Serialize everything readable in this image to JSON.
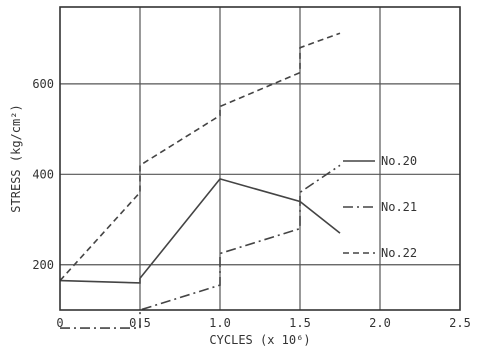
{
  "chart_data": {
    "type": "line",
    "title": "",
    "xlabel": "CYCLES (x 10⁶)",
    "ylabel": "STRESS (kg/cm²)",
    "xlim": [
      0,
      2.5
    ],
    "ylim": [
      100,
      770
    ],
    "grid": true,
    "legend_position": "right",
    "x_ticks": [
      "0",
      "0.5",
      "1.0",
      "1.5",
      "2.0",
      "2.5"
    ],
    "y_ticks": [
      "200",
      "400",
      "600"
    ],
    "series": [
      {
        "name": "No.20",
        "style": "solid",
        "points": [
          [
            0,
            165
          ],
          [
            0.5,
            160
          ],
          [
            0.5,
            170
          ],
          [
            1.0,
            390
          ],
          [
            1.5,
            340
          ],
          [
            1.75,
            270
          ]
        ]
      },
      {
        "name": "No.21",
        "style": "dashdot",
        "points": [
          [
            0,
            60
          ],
          [
            0.5,
            60
          ],
          [
            0.5,
            100
          ],
          [
            1.0,
            155
          ],
          [
            1.0,
            225
          ],
          [
            1.5,
            280
          ],
          [
            1.5,
            360
          ],
          [
            1.75,
            420
          ]
        ]
      },
      {
        "name": "No.22",
        "style": "dashed",
        "points": [
          [
            0,
            165
          ],
          [
            0.5,
            360
          ],
          [
            0.5,
            420
          ],
          [
            1.0,
            530
          ],
          [
            1.0,
            550
          ],
          [
            1.5,
            625
          ],
          [
            1.5,
            680
          ],
          [
            1.75,
            712
          ]
        ]
      }
    ]
  }
}
